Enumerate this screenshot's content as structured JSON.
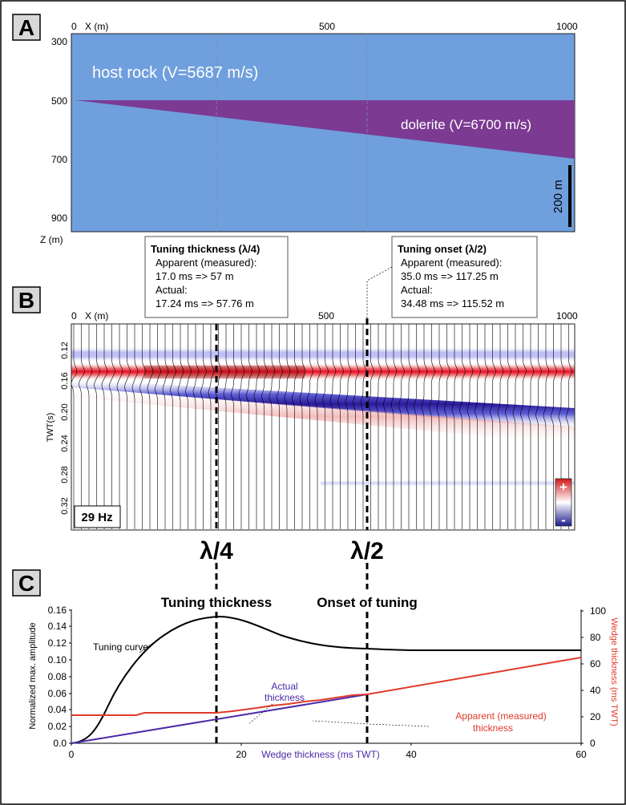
{
  "panels": {
    "a": {
      "letter": "A",
      "top_axis": {
        "label": "X (m)",
        "ticks": [
          "0",
          "500",
          "1000"
        ]
      },
      "left_axis": {
        "label": "Z (m)",
        "ticks": [
          "300",
          "500",
          "700",
          "900"
        ]
      },
      "host_label": "host rock (V=5687 m/s)",
      "dolerite_label": "dolerite (V=6700 m/s)",
      "scale_label": "200 m",
      "colors": {
        "host": "#6f9fdd",
        "dolerite": "#7c3a92"
      }
    },
    "tuning_box": {
      "title": "Tuning thickness (λ/4)",
      "line1": "Apparent (measured):",
      "line2": "17.0 ms => 57 m",
      "line3": "Actual:",
      "line4": "17.24 ms => 57.76 m"
    },
    "onset_box": {
      "title": "Tuning onset (λ/2)",
      "line1": "Apparent (measured):",
      "line2": "35.0 ms => 117.25 m",
      "line3": "Actual:",
      "line4": "34.48 ms => 115.52 m"
    },
    "b": {
      "letter": "B",
      "top_axis": {
        "label": "X (m)",
        "ticks": [
          "0",
          "500",
          "1000"
        ]
      },
      "y_label": "TWT(s)",
      "y_ticks": [
        "0.12",
        "0.16",
        "0.20",
        "0.24",
        "0.28",
        "0.32"
      ],
      "freq_label": "29 Hz",
      "plus": "+",
      "minus": "-",
      "marker_quarter": "λ/4",
      "marker_half": "λ/2"
    },
    "c": {
      "letter": "C",
      "label_tuning": "Tuning thickness",
      "label_onset": "Onset of tuning",
      "left_label": "Normalized max. amplitude",
      "right_label": "Wedge thickness (ms TWT)",
      "x_label": "Wedge thickness (ms TWT)",
      "left_ticks": [
        "0.0",
        "0.02",
        "0.04",
        "0.06",
        "0.08",
        "0.10",
        "0.12",
        "0.14",
        "0.16"
      ],
      "right_ticks": [
        "0",
        "20",
        "40",
        "60",
        "80",
        "100"
      ],
      "x_ticks": [
        "0",
        "20",
        "40",
        "60"
      ],
      "annot_tuning_curve": "Tuning curve",
      "annot_actual_1": "Actual",
      "annot_actual_2": "thickness",
      "annot_apparent_1": "Apparent (measured)",
      "annot_apparent_2": "thickness",
      "colors": {
        "tuning": "#000000",
        "actual": "#4b2aa8",
        "apparent": "#e03a2a"
      }
    }
  }
}
